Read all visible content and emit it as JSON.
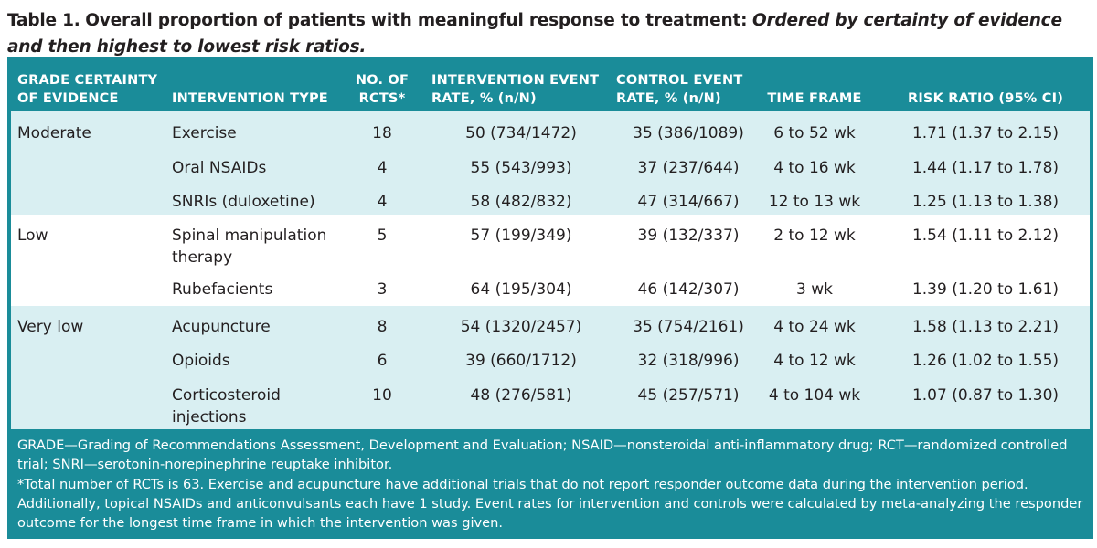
{
  "title": {
    "label": "Table 1.",
    "text": "Overall proportion of patients with meaningful response to treatment:",
    "subtitle": "Ordered by certainty of evidence and then highest to lowest risk ratios."
  },
  "columns": {
    "grade_l1": "GRADE CERTAINTY",
    "grade_l2": "OF EVIDENCE",
    "type": "INTERVENTION TYPE",
    "n_l1": "NO. OF",
    "n_l2": "RCTS*",
    "int_l1": "INTERVENTION EVENT",
    "int_l2": "RATE, % (n/N)",
    "ctl_l1": "CONTROL EVENT",
    "ctl_l2": "RATE, % (n/N)",
    "time": "TIME FRAME",
    "rr": "RISK RATIO (95% CI)"
  },
  "rows": [
    {
      "grade": "Moderate",
      "type": "Exercise",
      "n": "18",
      "int": "50 (734/1472)",
      "ctl": "35 (386/1089)",
      "time": "6 to 52 wk",
      "rr": "1.71 (1.37 to 2.15)"
    },
    {
      "grade": "",
      "type": "Oral NSAIDs",
      "n": "4",
      "int": "55 (543/993)",
      "ctl": "37 (237/644)",
      "time": "4 to 16 wk",
      "rr": "1.44 (1.17 to 1.78)"
    },
    {
      "grade": "",
      "type": "SNRIs (duloxetine)",
      "n": "4",
      "int": "58 (482/832)",
      "ctl": "47 (314/667)",
      "time": "12 to 13 wk",
      "rr": "1.25 (1.13 to 1.38)"
    },
    {
      "grade": "Low",
      "type_l1": "Spinal manipulation",
      "type_l2": "therapy",
      "n": "5",
      "int": "57 (199/349)",
      "ctl": "39 (132/337)",
      "time": "2 to 12 wk",
      "rr": "1.54 (1.11 to 2.12)"
    },
    {
      "grade": "",
      "type": "Rubefacients",
      "n": "3",
      "int": "64 (195/304)",
      "ctl": "46 (142/307)",
      "time": "3 wk",
      "rr": "1.39 (1.20 to 1.61)"
    },
    {
      "grade": "Very low",
      "type": "Acupuncture",
      "n": "8",
      "int": "54 (1320/2457)",
      "ctl": "35 (754/2161)",
      "time": "4 to 24 wk",
      "rr": "1.58 (1.13 to 2.21)"
    },
    {
      "grade": "",
      "type": "Opioids",
      "n": "6",
      "int": "39 (660/1712)",
      "ctl": "32 (318/996)",
      "time": "4 to 12 wk",
      "rr": "1.26 (1.02 to 1.55)"
    },
    {
      "grade": "",
      "type_l1": "Corticosteroid",
      "type_l2": "injections",
      "n": "10",
      "int": "48 (276/581)",
      "ctl": "45 (257/571)",
      "time": "4 to 104 wk",
      "rr": "1.07 (0.87 to 1.30)"
    }
  ],
  "footnotes": {
    "abbrev": "GRADE—Grading of Recommendations Assessment, Development and Evaluation; NSAID—nonsteroidal anti-inflammatory drug; RCT—randomized controlled trial; SNRI—serotonin-norepinephrine reuptake inhibitor.",
    "note": "*Total number of RCTs is 63. Exercise and acupuncture have additional trials that do not report responder outcome data during the intervention period. Additionally, topical NSAIDs and anticonvulsants each have 1 study. Event rates for intervention and controls were calculated by meta-analyzing the responder outcome for the longest time frame in which the intervention was given."
  }
}
